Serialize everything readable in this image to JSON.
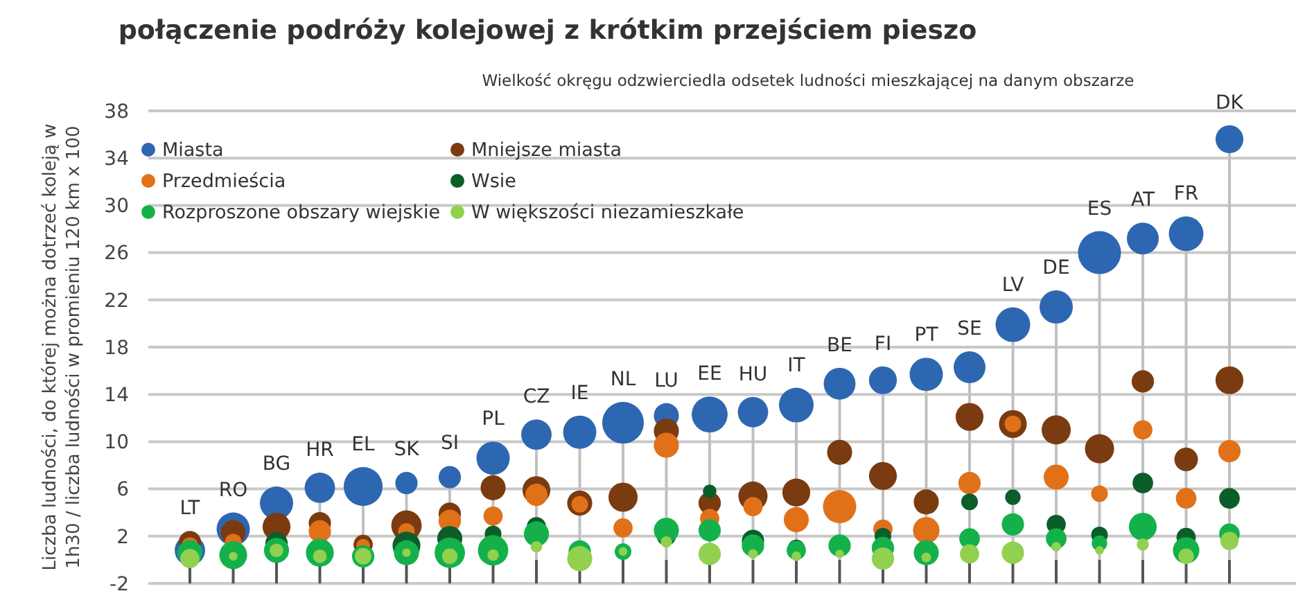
{
  "chart_data": {
    "type": "bubble",
    "title": "połączenie podróży kolejowej z krótkim przejściem pieszo",
    "subtitle": "Wielkość okręgu odzwierciedla odsetek ludności mieszkającej na danym obszarze",
    "ylabel": "Liczba ludności, do której można dotrzeć koleją w 1h30 / liczba ludności w promieniu 120 km x 100",
    "categories": [
      "LT",
      "RO",
      "BG",
      "HR",
      "EL",
      "SK",
      "SI",
      "PL",
      "CZ",
      "IE",
      "NL",
      "LU",
      "EE",
      "HU",
      "IT",
      "BE",
      "FI",
      "PT",
      "SE",
      "LV",
      "DE",
      "ES",
      "AT",
      "FR",
      "DK"
    ],
    "ylim": [
      -2,
      38
    ],
    "yticks": [
      -2,
      2,
      6,
      10,
      14,
      18,
      22,
      26,
      30,
      34,
      38
    ],
    "grid": "y",
    "legend": "top left",
    "series": [
      {
        "name": "Miasta",
        "color": "#2e67b1",
        "values": [
          0.8,
          2.6,
          4.8,
          6.1,
          6.2,
          6.5,
          7.0,
          8.6,
          10.6,
          10.8,
          11.6,
          12.2,
          12.3,
          12.5,
          13.1,
          14.9,
          15.2,
          15.7,
          16.3,
          19.9,
          21.4,
          26.0,
          27.2,
          27.6,
          35.6
        ],
        "sizes": [
          0.5,
          0.6,
          0.6,
          0.5,
          0.82,
          0.27,
          0.27,
          0.6,
          0.5,
          0.6,
          0.94,
          0.34,
          0.7,
          0.5,
          0.65,
          0.55,
          0.42,
          0.6,
          0.55,
          0.65,
          0.6,
          1,
          0.55,
          0.65,
          0.42
        ]
      },
      {
        "name": "Mniejsze miasta",
        "color": "#7a3b10",
        "values": [
          1.5,
          2.3,
          2.8,
          3.1,
          1.3,
          2.9,
          3.9,
          6.1,
          5.9,
          4.8,
          5.3,
          10.9,
          4.8,
          5.4,
          5.7,
          9.1,
          7.1,
          4.9,
          12.1,
          11.5,
          11.0,
          9.4,
          15.1,
          8.5,
          15.2
        ],
        "sizes": [
          0.27,
          0.34,
          0.42,
          0.27,
          0.2,
          0.5,
          0.27,
          0.34,
          0.42,
          0.34,
          0.46,
          0.34,
          0.27,
          0.46,
          0.42,
          0.34,
          0.42,
          0.34,
          0.42,
          0.42,
          0.46,
          0.46,
          0.27,
          0.3,
          0.42
        ]
      },
      {
        "name": "Przedmieścia",
        "color": "#e07119",
        "values": [
          1.2,
          1.5,
          null,
          2.4,
          1.2,
          2.4,
          3.3,
          3.7,
          5.5,
          4.7,
          2.7,
          9.7,
          3.5,
          4.5,
          3.4,
          4.5,
          2.6,
          2.5,
          6.5,
          11.5,
          7.0,
          5.6,
          11.0,
          5.2,
          9.2
        ],
        "sizes": [
          0.15,
          0.15,
          null,
          0.27,
          0.1,
          0.15,
          0.27,
          0.2,
          0.27,
          0.15,
          0.2,
          0.34,
          0.2,
          0.2,
          0.34,
          0.6,
          0.2,
          0.38,
          0.27,
          0.15,
          0.34,
          0.15,
          0.2,
          0.23,
          0.27
        ]
      },
      {
        "name": "Wsie",
        "color": "#0b5e2a",
        "values": [
          null,
          null,
          1.4,
          null,
          null,
          1.2,
          1.8,
          2.2,
          2.8,
          null,
          null,
          2.0,
          5.8,
          1.6,
          1.0,
          null,
          2.0,
          null,
          4.9,
          5.3,
          3.0,
          2.1,
          6.5,
          1.9,
          5.2
        ],
        "sizes": [
          null,
          null,
          0.27,
          null,
          null,
          0.42,
          0.34,
          0.15,
          0.2,
          null,
          null,
          0.2,
          0.1,
          0.27,
          0.15,
          null,
          0.15,
          null,
          0.15,
          0.13,
          0.2,
          0.15,
          0.23,
          0.2,
          0.23
        ]
      },
      {
        "name": "Rozproszone obszary wiejskie",
        "color": "#14b14b",
        "values": [
          0.6,
          0.4,
          0.8,
          0.6,
          0.3,
          0.6,
          0.6,
          0.8,
          2.2,
          0.7,
          0.7,
          2.5,
          2.5,
          1.2,
          0.8,
          1.2,
          1.0,
          0.6,
          1.8,
          3.0,
          1.8,
          1.4,
          2.8,
          0.8,
          2.2
        ],
        "sizes": [
          0.34,
          0.42,
          0.34,
          0.42,
          0.27,
          0.34,
          0.5,
          0.5,
          0.34,
          0.27,
          0.15,
          0.34,
          0.27,
          0.27,
          0.2,
          0.27,
          0.27,
          0.34,
          0.23,
          0.27,
          0.23,
          0.13,
          0.42,
          0.38,
          0.23
        ]
      },
      {
        "name": "W większości niezamieszkałe",
        "color": "#92d050",
        "values": [
          0.1,
          0.3,
          0.8,
          0.3,
          0.3,
          0.6,
          0.3,
          0.4,
          1.1,
          0.1,
          0.7,
          1.5,
          0.5,
          0.5,
          0.3,
          0.5,
          0.1,
          0.2,
          0.5,
          0.6,
          1.1,
          0.8,
          1.3,
          0.3,
          1.6
        ],
        "sizes": [
          0.2,
          0.04,
          0.1,
          0.1,
          0.15,
          0.04,
          0.13,
          0.07,
          0.07,
          0.34,
          0.04,
          0.07,
          0.27,
          0.05,
          0.05,
          0.04,
          0.27,
          0.05,
          0.2,
          0.27,
          0.05,
          0.04,
          0.08,
          0.13,
          0.18
        ]
      }
    ]
  }
}
